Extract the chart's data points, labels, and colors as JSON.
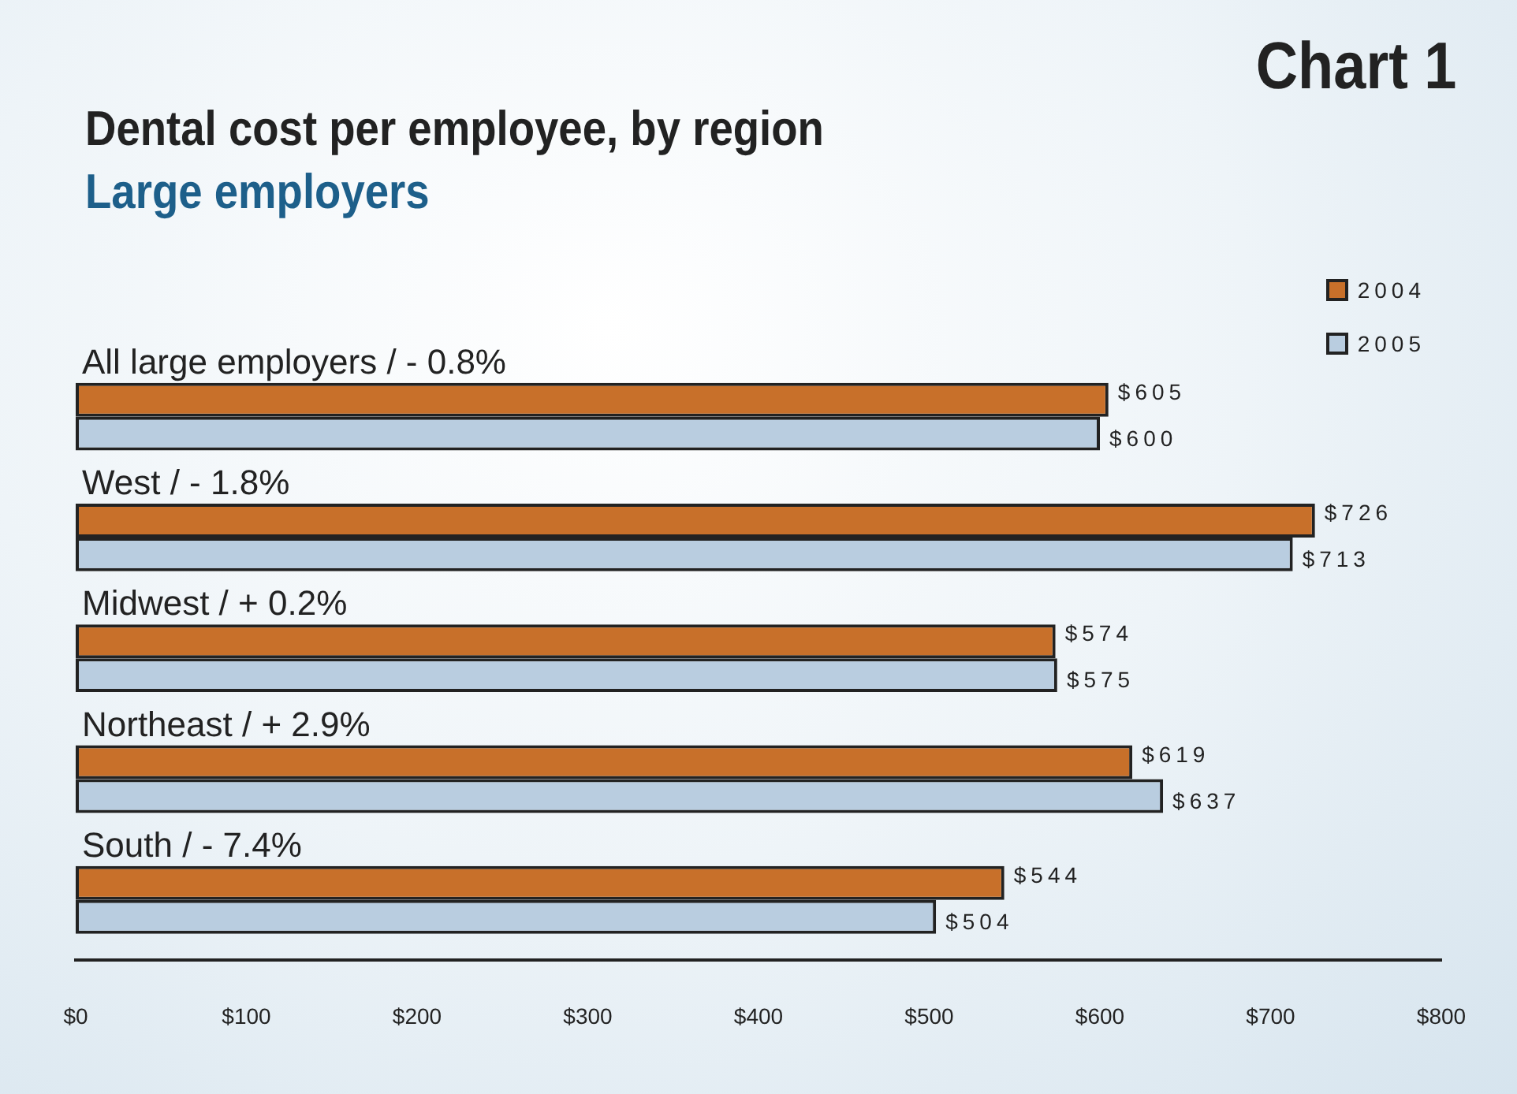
{
  "chart_data": {
    "type": "bar",
    "orientation": "horizontal",
    "title": "Dental cost per employee, by region",
    "subtitle": "Large employers",
    "annotations": [
      "Chart 1"
    ],
    "categories": [
      "All large employers / - 0.8%",
      "West / - 1.8%",
      "Midwest / + 0.2%",
      "Northeast / + 2.9%",
      "South / - 7.4%"
    ],
    "series": [
      {
        "name": "2004",
        "color": "#c8702a",
        "values": [
          605,
          726,
          574,
          619,
          544
        ],
        "value_labels": [
          "$605",
          "$726",
          "$574",
          "$619",
          "$544"
        ]
      },
      {
        "name": "2005",
        "color": "#b9cde0",
        "values": [
          600,
          713,
          575,
          637,
          504
        ],
        "value_labels": [
          "$600",
          "$713",
          "$575",
          "$637",
          "$504"
        ]
      }
    ],
    "xlim": [
      0,
      800
    ],
    "xticks": [
      {
        "value": 0,
        "label": "$0"
      },
      {
        "value": 100,
        "label": "$100"
      },
      {
        "value": 200,
        "label": "$200"
      },
      {
        "value": 300,
        "label": "$300"
      },
      {
        "value": 400,
        "label": "$400"
      },
      {
        "value": 500,
        "label": "$500"
      },
      {
        "value": 600,
        "label": "$600"
      },
      {
        "value": 700,
        "label": "$700"
      },
      {
        "value": 800,
        "label": "$800"
      }
    ],
    "grid": false,
    "legend": "top right"
  }
}
